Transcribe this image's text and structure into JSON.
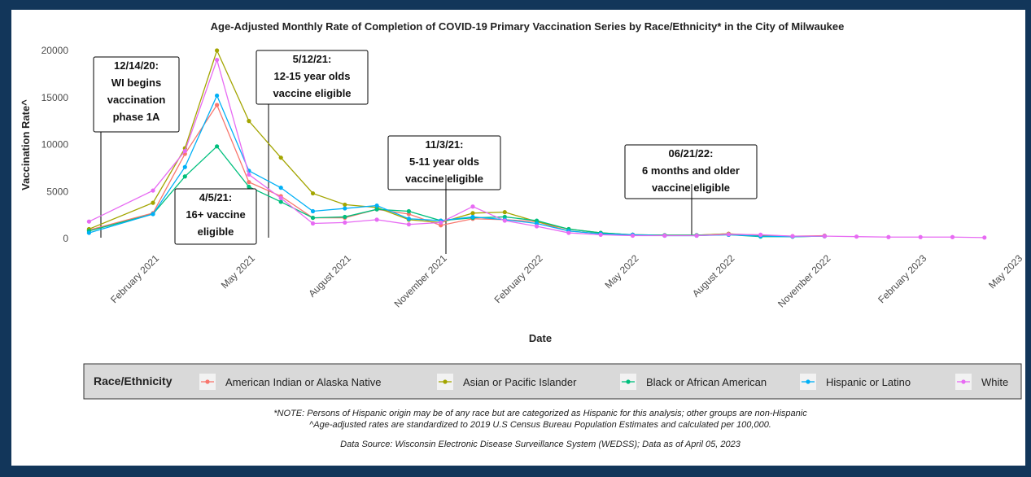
{
  "chart_data": {
    "type": "line",
    "title": "Age-Adjusted Monthly Rate of Completion of COVID-19 Primary Vaccination Series by Race/Ethnicity* in the City of Milwaukee",
    "x_label": "Date",
    "y_label": "Vaccination Rate^",
    "legend_title": "Race/Ethnicity",
    "x": [
      "2020-12",
      "2021-02",
      "2021-03",
      "2021-04",
      "2021-05",
      "2021-06",
      "2021-07",
      "2021-08",
      "2021-09",
      "2021-10",
      "2021-11",
      "2021-12",
      "2022-01",
      "2022-02",
      "2022-03",
      "2022-04",
      "2022-05",
      "2022-06",
      "2022-07",
      "2022-08",
      "2022-09",
      "2022-10",
      "2022-11",
      "2022-12",
      "2023-01",
      "2023-02",
      "2023-03",
      "2023-04"
    ],
    "series": [
      {
        "name": "American Indian or Alaska Native",
        "color": "#F8766D",
        "values": [
          900,
          2700,
          9000,
          14200,
          6000,
          4500,
          2200,
          2200,
          3100,
          2600,
          1400,
          2100,
          2000,
          1800,
          800,
          500,
          400,
          350,
          350,
          500,
          350,
          250,
          300,
          null,
          null,
          null,
          null,
          null
        ]
      },
      {
        "name": "Asian or Pacific Islander",
        "color": "#A3A500",
        "values": [
          1000,
          3800,
          9600,
          20000,
          12500,
          8600,
          4800,
          3600,
          3300,
          2000,
          1700,
          2700,
          2800,
          1800,
          1000,
          600,
          400,
          350,
          350,
          500,
          300,
          200,
          250,
          null,
          null,
          null,
          null,
          null
        ]
      },
      {
        "name": "Black or African American",
        "color": "#00BF7D",
        "values": [
          800,
          2600,
          6600,
          9800,
          5500,
          3900,
          2200,
          2300,
          3100,
          2900,
          1900,
          2200,
          2300,
          1900,
          1000,
          600,
          400,
          350,
          350,
          400,
          200,
          200,
          250,
          null,
          null,
          null,
          null,
          null
        ]
      },
      {
        "name": "Hispanic or Latino",
        "color": "#00B0F6",
        "values": [
          600,
          2600,
          7600,
          15200,
          7200,
          5400,
          2900,
          3200,
          3500,
          2100,
          1900,
          2300,
          2000,
          1600,
          800,
          500,
          400,
          300,
          300,
          400,
          250,
          200,
          250,
          null,
          null,
          null,
          null,
          null
        ]
      },
      {
        "name": "White",
        "color": "#E76BF3",
        "values": [
          1800,
          5100,
          9300,
          19000,
          6800,
          4300,
          1600,
          1700,
          2000,
          1500,
          1700,
          3400,
          1900,
          1300,
          600,
          400,
          300,
          300,
          300,
          450,
          400,
          250,
          250,
          200,
          150,
          150,
          150,
          100
        ]
      }
    ],
    "ylim": [
      0,
      20000
    ],
    "yticks": [
      0,
      5000,
      10000,
      15000,
      20000
    ],
    "xticks": [
      {
        "value": "2021-02",
        "label": "February 2021"
      },
      {
        "value": "2021-05",
        "label": "May 2021"
      },
      {
        "value": "2021-08",
        "label": "August 2021"
      },
      {
        "value": "2021-11",
        "label": "November 2021"
      },
      {
        "value": "2022-02",
        "label": "February 2022"
      },
      {
        "value": "2022-05",
        "label": "May 2022"
      },
      {
        "value": "2022-08",
        "label": "August 2022"
      },
      {
        "value": "2022-11",
        "label": "November 2022"
      },
      {
        "value": "2023-02",
        "label": "February 2023"
      },
      {
        "value": "2023-05",
        "label": "May 2023"
      }
    ],
    "annotations": [
      {
        "lines": [
          "12/14/20:",
          "WI begins",
          "vaccination",
          "phase 1A"
        ]
      },
      {
        "lines": [
          "4/5/21:",
          "16+ vaccine",
          "eligible"
        ]
      },
      {
        "lines": [
          "5/12/21:",
          "12-15 year olds",
          "vaccine eligible"
        ]
      },
      {
        "lines": [
          "11/3/21:",
          "5-11 year olds",
          "vaccine eligible"
        ]
      },
      {
        "lines": [
          "06/21/22:",
          "6 months and older",
          "vaccine eligible"
        ]
      }
    ],
    "notes": [
      "*NOTE: Persons of Hispanic origin may be of any race but are categorized as Hispanic for this analysis; other groups are non-Hispanic",
      "^Age-adjusted rates are standardized to 2019 U.S Census Bureau Population Estimates and calculated per 100,000.",
      "Data Source: Wisconsin Electronic Disease Surveillance System (WEDSS); Data as of April 05, 2023"
    ]
  }
}
